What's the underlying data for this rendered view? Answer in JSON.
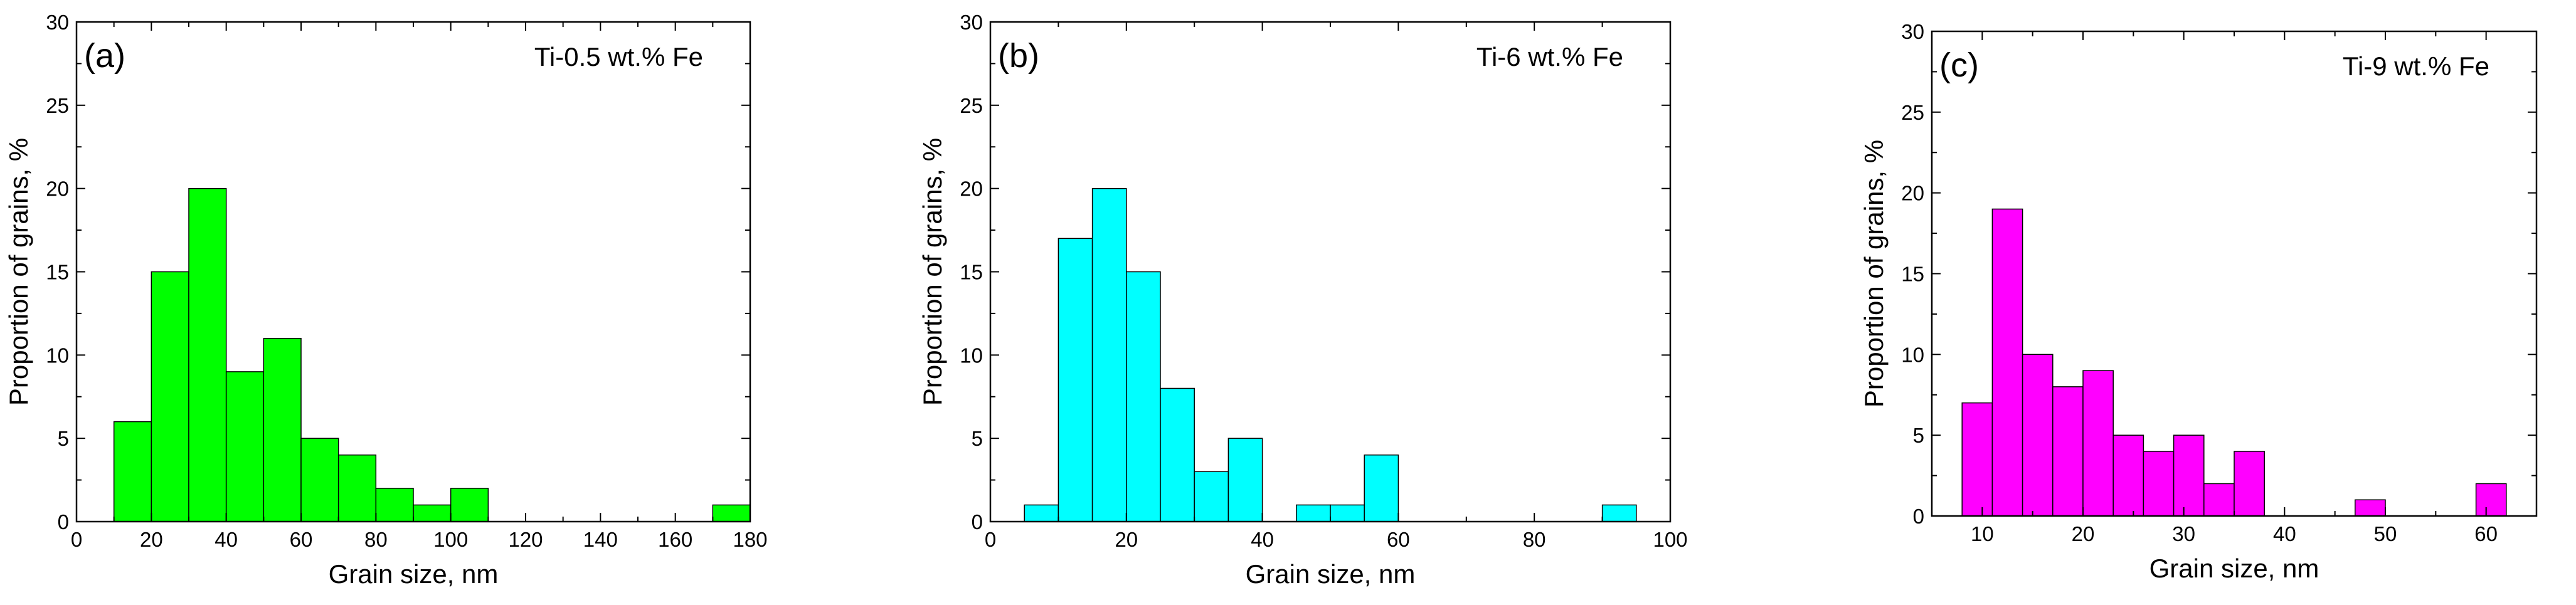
{
  "chart_data": [
    {
      "type": "bar",
      "panel_label": "(a)",
      "legend": "Ti-0.5 wt.% Fe",
      "color": "#00FF00",
      "xlabel": "Grain size, nm",
      "ylabel": "Proportion of grains, %",
      "xlim": [
        0,
        180
      ],
      "ylim": [
        0,
        30
      ],
      "xticks": [
        0,
        20,
        40,
        60,
        80,
        100,
        120,
        140,
        160,
        180
      ],
      "yticks": [
        0,
        5,
        10,
        15,
        20,
        25,
        30
      ],
      "bins": [
        {
          "x0": 10,
          "x1": 20,
          "value": 6
        },
        {
          "x0": 20,
          "x1": 30,
          "value": 15
        },
        {
          "x0": 30,
          "x1": 40,
          "value": 20
        },
        {
          "x0": 40,
          "x1": 50,
          "value": 9
        },
        {
          "x0": 50,
          "x1": 60,
          "value": 11
        },
        {
          "x0": 60,
          "x1": 70,
          "value": 5
        },
        {
          "x0": 70,
          "x1": 80,
          "value": 4
        },
        {
          "x0": 80,
          "x1": 90,
          "value": 2
        },
        {
          "x0": 90,
          "x1": 100,
          "value": 1
        },
        {
          "x0": 100,
          "x1": 110,
          "value": 2
        },
        {
          "x0": 170,
          "x1": 180,
          "value": 1
        }
      ]
    },
    {
      "type": "bar",
      "panel_label": "(b)",
      "legend": "Ti-6 wt.% Fe",
      "color": "#00FFFF",
      "xlabel": "Grain size, nm",
      "ylabel": "Proportion of grains, %",
      "xlim": [
        0,
        100
      ],
      "ylim": [
        0,
        30
      ],
      "xticks": [
        0,
        20,
        40,
        60,
        80,
        100
      ],
      "yticks": [
        0,
        5,
        10,
        15,
        20,
        25,
        30
      ],
      "bins": [
        {
          "x0": 5,
          "x1": 10,
          "value": 1
        },
        {
          "x0": 10,
          "x1": 15,
          "value": 17
        },
        {
          "x0": 15,
          "x1": 20,
          "value": 20
        },
        {
          "x0": 20,
          "x1": 25,
          "value": 15
        },
        {
          "x0": 25,
          "x1": 30,
          "value": 8
        },
        {
          "x0": 30,
          "x1": 35,
          "value": 3
        },
        {
          "x0": 35,
          "x1": 40,
          "value": 5
        },
        {
          "x0": 45,
          "x1": 50,
          "value": 1
        },
        {
          "x0": 50,
          "x1": 55,
          "value": 1
        },
        {
          "x0": 55,
          "x1": 60,
          "value": 4
        },
        {
          "x0": 90,
          "x1": 95,
          "value": 1
        }
      ]
    },
    {
      "type": "bar",
      "panel_label": "(c)",
      "legend": "Ti-9 wt.% Fe",
      "color": "#FF00FF",
      "xlabel": "Grain size, nm",
      "ylabel": "Proportion of grains, %",
      "xlim": [
        5,
        65
      ],
      "ylim": [
        0,
        30
      ],
      "xticks": [
        10,
        20,
        30,
        40,
        50,
        60
      ],
      "yticks": [
        0,
        5,
        10,
        15,
        20,
        25,
        30
      ],
      "bins": [
        {
          "x0": 8,
          "x1": 11,
          "value": 7
        },
        {
          "x0": 11,
          "x1": 14,
          "value": 19
        },
        {
          "x0": 14,
          "x1": 17,
          "value": 10
        },
        {
          "x0": 17,
          "x1": 20,
          "value": 8
        },
        {
          "x0": 20,
          "x1": 23,
          "value": 9
        },
        {
          "x0": 23,
          "x1": 26,
          "value": 5
        },
        {
          "x0": 26,
          "x1": 29,
          "value": 4
        },
        {
          "x0": 29,
          "x1": 32,
          "value": 5
        },
        {
          "x0": 32,
          "x1": 35,
          "value": 2
        },
        {
          "x0": 35,
          "x1": 38,
          "value": 4
        },
        {
          "x0": 47,
          "x1": 50,
          "value": 1
        },
        {
          "x0": 59,
          "x1": 62,
          "value": 2
        }
      ]
    }
  ]
}
